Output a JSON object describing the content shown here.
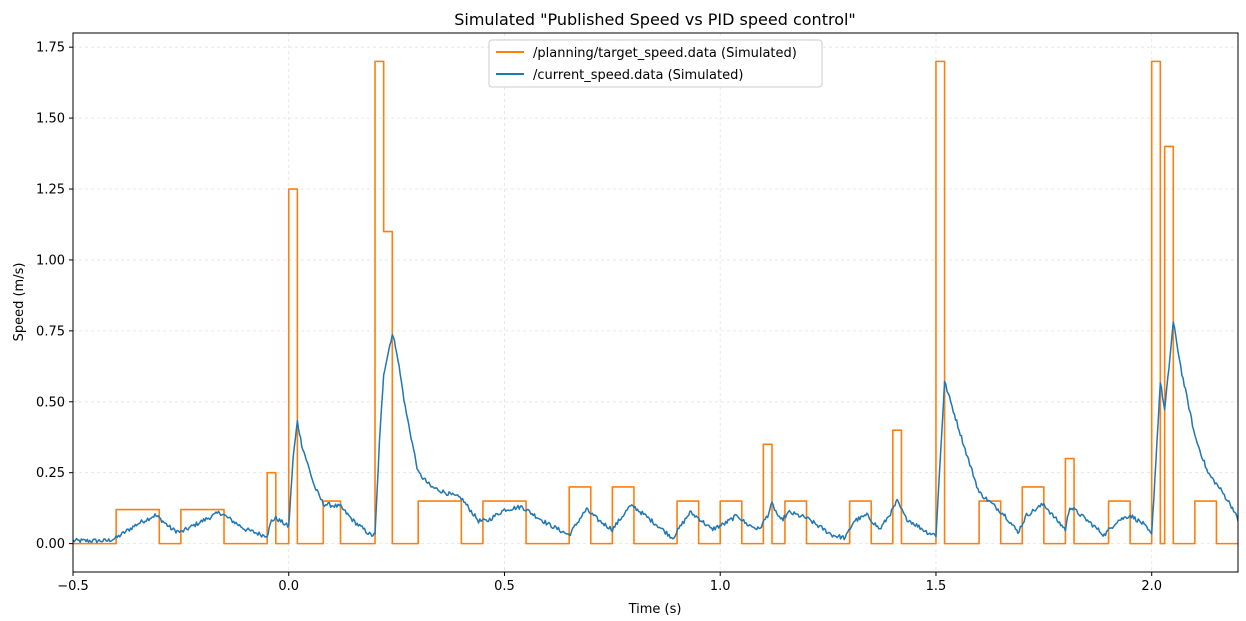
{
  "chart_data": {
    "type": "line",
    "title": "Simulated \"Published Speed vs PID speed control\"",
    "xlabel": "Time (s)",
    "ylabel": "Speed (m/s)",
    "xlim": [
      -0.5,
      2.2
    ],
    "ylim": [
      -0.1,
      1.8
    ],
    "xticks": [
      -0.5,
      0.0,
      0.5,
      1.0,
      1.5,
      2.0
    ],
    "xtick_labels": [
      "−0.5",
      "0.0",
      "0.5",
      "1.0",
      "1.5",
      "2.0"
    ],
    "yticks": [
      0.0,
      0.25,
      0.5,
      0.75,
      1.0,
      1.25,
      1.5,
      1.75
    ],
    "ytick_labels": [
      "0.00",
      "0.25",
      "0.50",
      "0.75",
      "1.00",
      "1.25",
      "1.50",
      "1.75"
    ],
    "grid": true,
    "legend_position": "top-center",
    "series": [
      {
        "name": "/planning/target_speed.data (Simulated)",
        "color": "#ff7f0e",
        "step": true,
        "points": [
          [
            -0.5,
            0.0
          ],
          [
            -0.4,
            0.0
          ],
          [
            -0.4,
            0.12
          ],
          [
            -0.3,
            0.12
          ],
          [
            -0.3,
            0.0
          ],
          [
            -0.25,
            0.0
          ],
          [
            -0.25,
            0.12
          ],
          [
            -0.15,
            0.12
          ],
          [
            -0.15,
            0.0
          ],
          [
            -0.05,
            0.0
          ],
          [
            -0.05,
            0.25
          ],
          [
            -0.03,
            0.25
          ],
          [
            -0.03,
            0.0
          ],
          [
            0.0,
            0.0
          ],
          [
            0.0,
            1.25
          ],
          [
            0.02,
            1.25
          ],
          [
            0.02,
            0.0
          ],
          [
            0.08,
            0.0
          ],
          [
            0.08,
            0.15
          ],
          [
            0.12,
            0.15
          ],
          [
            0.12,
            0.0
          ],
          [
            0.2,
            0.0
          ],
          [
            0.2,
            1.7
          ],
          [
            0.22,
            1.7
          ],
          [
            0.22,
            1.1
          ],
          [
            0.24,
            1.1
          ],
          [
            0.24,
            0.0
          ],
          [
            0.3,
            0.0
          ],
          [
            0.3,
            0.15
          ],
          [
            0.4,
            0.15
          ],
          [
            0.4,
            0.0
          ],
          [
            0.45,
            0.0
          ],
          [
            0.45,
            0.15
          ],
          [
            0.55,
            0.15
          ],
          [
            0.55,
            0.0
          ],
          [
            0.65,
            0.0
          ],
          [
            0.65,
            0.2
          ],
          [
            0.7,
            0.2
          ],
          [
            0.7,
            0.0
          ],
          [
            0.75,
            0.0
          ],
          [
            0.75,
            0.2
          ],
          [
            0.8,
            0.2
          ],
          [
            0.8,
            0.0
          ],
          [
            0.9,
            0.0
          ],
          [
            0.9,
            0.15
          ],
          [
            0.95,
            0.15
          ],
          [
            0.95,
            0.0
          ],
          [
            1.0,
            0.0
          ],
          [
            1.0,
            0.15
          ],
          [
            1.05,
            0.15
          ],
          [
            1.05,
            0.0
          ],
          [
            1.1,
            0.0
          ],
          [
            1.1,
            0.35
          ],
          [
            1.12,
            0.35
          ],
          [
            1.12,
            0.0
          ],
          [
            1.15,
            0.0
          ],
          [
            1.15,
            0.15
          ],
          [
            1.2,
            0.15
          ],
          [
            1.2,
            0.0
          ],
          [
            1.3,
            0.0
          ],
          [
            1.3,
            0.15
          ],
          [
            1.35,
            0.15
          ],
          [
            1.35,
            0.0
          ],
          [
            1.4,
            0.0
          ],
          [
            1.4,
            0.4
          ],
          [
            1.42,
            0.4
          ],
          [
            1.42,
            0.0
          ],
          [
            1.5,
            0.0
          ],
          [
            1.5,
            1.7
          ],
          [
            1.52,
            1.7
          ],
          [
            1.52,
            0.0
          ],
          [
            1.6,
            0.0
          ],
          [
            1.6,
            0.15
          ],
          [
            1.65,
            0.15
          ],
          [
            1.65,
            0.0
          ],
          [
            1.7,
            0.0
          ],
          [
            1.7,
            0.2
          ],
          [
            1.75,
            0.2
          ],
          [
            1.75,
            0.0
          ],
          [
            1.8,
            0.0
          ],
          [
            1.8,
            0.3
          ],
          [
            1.82,
            0.3
          ],
          [
            1.82,
            0.0
          ],
          [
            1.9,
            0.0
          ],
          [
            1.9,
            0.15
          ],
          [
            1.95,
            0.15
          ],
          [
            1.95,
            0.0
          ],
          [
            2.0,
            0.0
          ],
          [
            2.0,
            1.7
          ],
          [
            2.02,
            1.7
          ],
          [
            2.02,
            0.0
          ],
          [
            2.03,
            0.0
          ],
          [
            2.03,
            1.4
          ],
          [
            2.05,
            1.4
          ],
          [
            2.05,
            0.0
          ],
          [
            2.1,
            0.0
          ],
          [
            2.1,
            0.15
          ],
          [
            2.15,
            0.15
          ],
          [
            2.15,
            0.0
          ],
          [
            2.2,
            0.0
          ]
        ]
      },
      {
        "name": "/current_speed.data (Simulated)",
        "color": "#1f77b4",
        "points": [
          [
            -0.5,
            0.01
          ],
          [
            -0.42,
            0.01
          ],
          [
            -0.4,
            0.02
          ],
          [
            -0.35,
            0.07
          ],
          [
            -0.31,
            0.1
          ],
          [
            -0.3,
            0.09
          ],
          [
            -0.27,
            0.05
          ],
          [
            -0.25,
            0.04
          ],
          [
            -0.2,
            0.08
          ],
          [
            -0.16,
            0.11
          ],
          [
            -0.15,
            0.1
          ],
          [
            -0.1,
            0.05
          ],
          [
            -0.06,
            0.03
          ],
          [
            -0.05,
            0.03
          ],
          [
            -0.04,
            0.08
          ],
          [
            -0.03,
            0.09
          ],
          [
            -0.01,
            0.07
          ],
          [
            0.0,
            0.06
          ],
          [
            0.01,
            0.3
          ],
          [
            0.02,
            0.43
          ],
          [
            0.03,
            0.35
          ],
          [
            0.06,
            0.2
          ],
          [
            0.08,
            0.14
          ],
          [
            0.12,
            0.13
          ],
          [
            0.15,
            0.08
          ],
          [
            0.19,
            0.03
          ],
          [
            0.2,
            0.03
          ],
          [
            0.21,
            0.35
          ],
          [
            0.22,
            0.6
          ],
          [
            0.24,
            0.74
          ],
          [
            0.25,
            0.68
          ],
          [
            0.27,
            0.48
          ],
          [
            0.3,
            0.25
          ],
          [
            0.33,
            0.2
          ],
          [
            0.38,
            0.17
          ],
          [
            0.4,
            0.16
          ],
          [
            0.44,
            0.08
          ],
          [
            0.46,
            0.08
          ],
          [
            0.5,
            0.12
          ],
          [
            0.54,
            0.13
          ],
          [
            0.55,
            0.12
          ],
          [
            0.6,
            0.07
          ],
          [
            0.65,
            0.03
          ],
          [
            0.68,
            0.1
          ],
          [
            0.69,
            0.12
          ],
          [
            0.72,
            0.08
          ],
          [
            0.75,
            0.05
          ],
          [
            0.79,
            0.13
          ],
          [
            0.8,
            0.13
          ],
          [
            0.85,
            0.07
          ],
          [
            0.89,
            0.02
          ],
          [
            0.93,
            0.11
          ],
          [
            0.95,
            0.09
          ],
          [
            0.98,
            0.05
          ],
          [
            1.01,
            0.07
          ],
          [
            1.04,
            0.1
          ],
          [
            1.06,
            0.07
          ],
          [
            1.09,
            0.05
          ],
          [
            1.11,
            0.1
          ],
          [
            1.12,
            0.14
          ],
          [
            1.14,
            0.08
          ],
          [
            1.16,
            0.11
          ],
          [
            1.2,
            0.09
          ],
          [
            1.26,
            0.03
          ],
          [
            1.29,
            0.02
          ],
          [
            1.31,
            0.08
          ],
          [
            1.34,
            0.1
          ],
          [
            1.37,
            0.05
          ],
          [
            1.4,
            0.12
          ],
          [
            1.41,
            0.15
          ],
          [
            1.43,
            0.09
          ],
          [
            1.48,
            0.04
          ],
          [
            1.5,
            0.03
          ],
          [
            1.51,
            0.3
          ],
          [
            1.52,
            0.57
          ],
          [
            1.54,
            0.47
          ],
          [
            1.57,
            0.32
          ],
          [
            1.6,
            0.18
          ],
          [
            1.63,
            0.14
          ],
          [
            1.66,
            0.1
          ],
          [
            1.69,
            0.04
          ],
          [
            1.71,
            0.1
          ],
          [
            1.75,
            0.14
          ],
          [
            1.77,
            0.1
          ],
          [
            1.8,
            0.05
          ],
          [
            1.81,
            0.13
          ],
          [
            1.82,
            0.12
          ],
          [
            1.86,
            0.07
          ],
          [
            1.89,
            0.03
          ],
          [
            1.92,
            0.08
          ],
          [
            1.95,
            0.1
          ],
          [
            1.98,
            0.07
          ],
          [
            2.0,
            0.03
          ],
          [
            2.01,
            0.3
          ],
          [
            2.02,
            0.57
          ],
          [
            2.03,
            0.47
          ],
          [
            2.04,
            0.62
          ],
          [
            2.05,
            0.78
          ],
          [
            2.07,
            0.6
          ],
          [
            2.1,
            0.38
          ],
          [
            2.13,
            0.25
          ],
          [
            2.16,
            0.19
          ],
          [
            2.19,
            0.12
          ],
          [
            2.2,
            0.08
          ]
        ]
      }
    ]
  }
}
